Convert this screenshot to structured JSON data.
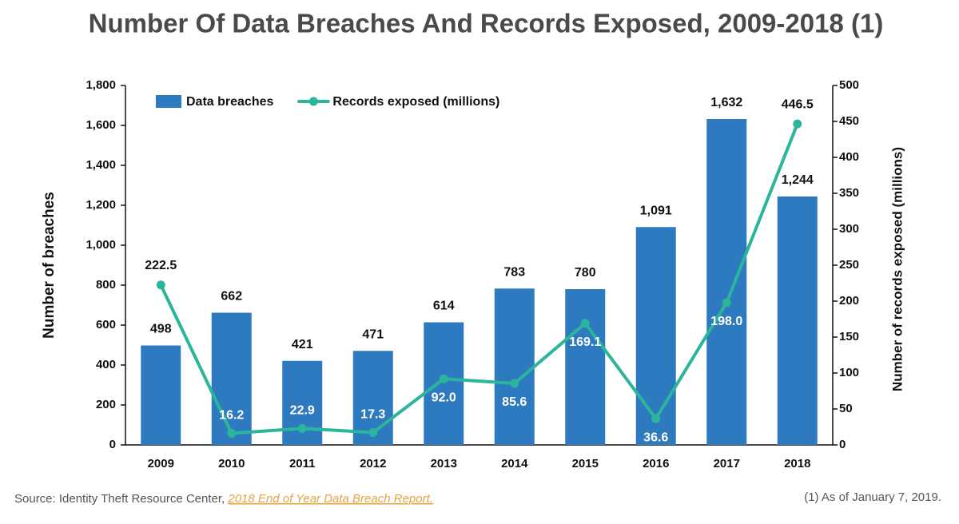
{
  "chart_data": {
    "type": "bar-line",
    "title": "Number Of Data Breaches And Records Exposed, 2009-2018 (1)",
    "categories": [
      "2009",
      "2010",
      "2011",
      "2012",
      "2013",
      "2014",
      "2015",
      "2016",
      "2017",
      "2018"
    ],
    "series": [
      {
        "name": "Data breaches",
        "type": "bar",
        "color": "#2e7ac0",
        "values": [
          498,
          662,
          421,
          471,
          614,
          783,
          780,
          1091,
          1632,
          1244
        ],
        "value_labels": [
          "498",
          "662",
          "421",
          "471",
          "614",
          "783",
          "780",
          "1,091",
          "1,632",
          "1,244"
        ]
      },
      {
        "name": "Records exposed (millions)",
        "type": "line",
        "axis": "y2",
        "color": "#2bb59a",
        "values": [
          222.5,
          16.2,
          22.9,
          17.3,
          92,
          85.6,
          169.1,
          36.6,
          198,
          446.5
        ],
        "value_labels": [
          "222.5",
          "16.2",
          "22.9",
          "17.3",
          "92.0",
          "85.6",
          "169.1",
          "36.6",
          "198.0",
          "446.5"
        ]
      }
    ],
    "ylabel": "Number of breaches",
    "y2label": "Number of records exposed (millions)",
    "ylim": [
      0,
      1800
    ],
    "yticks": [
      0,
      200,
      400,
      600,
      800,
      {
        "value": 1000,
        "label": "1,000"
      },
      {
        "value": 1200,
        "label": "1,200"
      },
      {
        "value": 1400,
        "label": "1,400"
      },
      {
        "value": 1600,
        "label": "1,600"
      },
      {
        "value": 1800,
        "label": "1,800"
      }
    ],
    "y2lim": [
      0,
      500
    ],
    "y2ticks": [
      0,
      50,
      100,
      150,
      200,
      250,
      300,
      350,
      400,
      450,
      500
    ],
    "legend": "upper left",
    "source": "Source: Identity Theft Resource Center, ",
    "source_link": "2018 End of Year Data Breach Report.",
    "footnote": "(1) As of January 7, 2019."
  }
}
